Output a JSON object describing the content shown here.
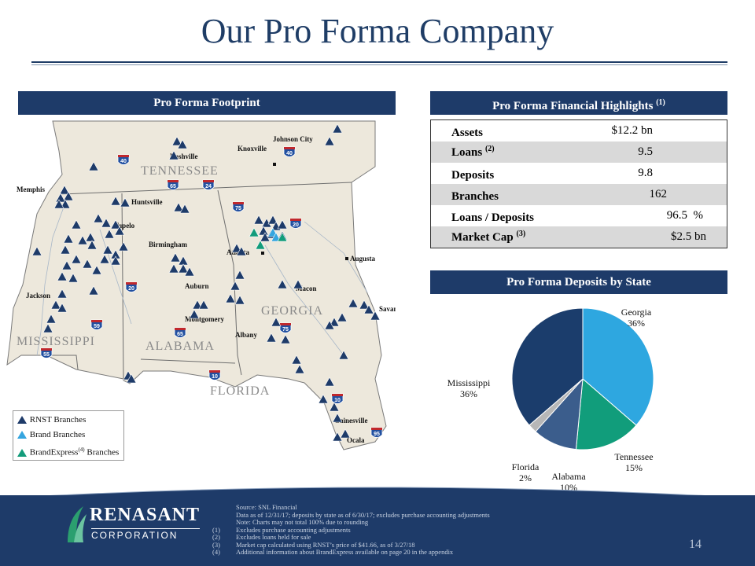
{
  "title": "Our Pro Forma Company",
  "footprint": {
    "header": "Pro Forma Footprint",
    "states": [
      "TENNESSEE",
      "MISSISSIPPI",
      "ALABAMA",
      "GEORGIA",
      "FLORIDA"
    ],
    "cities": [
      "Memphis",
      "Nashville",
      "Knoxville",
      "Johnson City",
      "Huntsville",
      "Tupelo",
      "Birmingham",
      "Atlanta",
      "Augusta",
      "Auburn",
      "Macon",
      "Jackson",
      "Montgomery",
      "Savannah",
      "Albany",
      "Gainesville",
      "Ocala"
    ],
    "highways": [
      "40",
      "40",
      "65",
      "24",
      "75",
      "20",
      "20",
      "59",
      "65",
      "75",
      "55",
      "10",
      "10",
      "95"
    ],
    "legend": {
      "rnst": "RNST Branches",
      "brand": "Brand Branches",
      "brandexpress_prefix": "BrandExpress",
      "brandexpress_sup": "(4)",
      "brandexpress_suffix": "Branches"
    },
    "colors": {
      "rnst": "#1e3b69",
      "brand": "#35a5df",
      "brandexpress": "#139c7b"
    }
  },
  "financials": {
    "header": "Pro Forma Financial Highlights",
    "header_sup": "(1)",
    "rows": [
      {
        "label": "Assets",
        "sup": "",
        "value": "$12.2",
        "unit": "bn"
      },
      {
        "label": "Loans",
        "sup": "(2)",
        "value": "9.5",
        "unit": ""
      },
      {
        "label": "Deposits",
        "sup": "",
        "value": "9.8",
        "unit": ""
      },
      {
        "label": "Branches",
        "sup": "",
        "value": "162",
        "unit": ""
      },
      {
        "label": "Loans / Deposits",
        "sup": "",
        "value": "96.5",
        "unit": "%"
      },
      {
        "label": "Market Cap",
        "sup": "(3)",
        "value": "$2.5",
        "unit": "bn"
      }
    ]
  },
  "deposits_header": "Pro Forma Deposits by State",
  "chart_data": {
    "type": "pie",
    "title": "Pro Forma Deposits by State",
    "slices": [
      {
        "name": "Georgia",
        "label": "36%",
        "value": 36,
        "color": "#2ea7e0"
      },
      {
        "name": "Tennessee",
        "label": "15%",
        "value": 15,
        "color": "#119d7b"
      },
      {
        "name": "Alabama",
        "label": "10%",
        "value": 10,
        "color": "#3b5d8c"
      },
      {
        "name": "Florida",
        "label": "2%",
        "value": 2,
        "color": "#b7b7b7"
      },
      {
        "name": "Mississippi",
        "label": "36%",
        "value": 36,
        "color": "#1b3d6c"
      }
    ]
  },
  "footer": {
    "logo_name": "RENASANT",
    "logo_sub": "CORPORATION",
    "notes": [
      {
        "k": "",
        "t": "Source: SNL Financial"
      },
      {
        "k": "",
        "t": "Data as of 12/31/17; deposits by state as of 6/30/17; excludes purchase accounting adjustments"
      },
      {
        "k": "",
        "t": "Note: Charts may not total 100% due to rounding"
      },
      {
        "k": "(1)",
        "t": "Excludes purchase accounting adjustments"
      },
      {
        "k": "(2)",
        "t": "Excludes loans held for sale"
      },
      {
        "k": "(3)",
        "t": "Market cap calculated using RNST’s price of $41.66, as of 3/27/18"
      },
      {
        "k": "(4)",
        "t": "Additional information about BrandExpress available on page 20 in the appendix"
      }
    ],
    "page_number": "14"
  }
}
